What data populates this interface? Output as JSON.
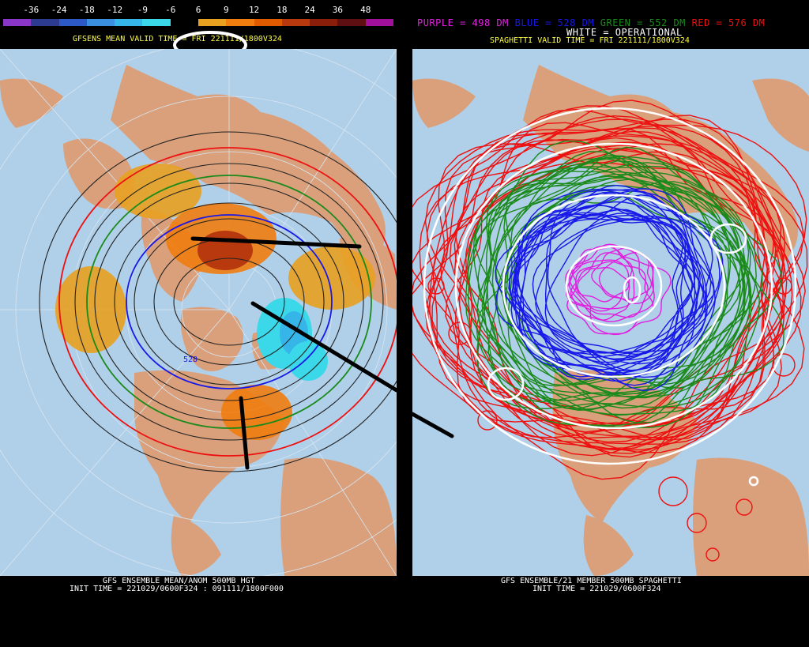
{
  "left": {
    "scale_labels": [
      "-36",
      "-24",
      "-18",
      "-12",
      "-9",
      "-6",
      "6",
      "9",
      "12",
      "18",
      "24",
      "36",
      "48"
    ],
    "scale_colors": [
      "#8a37c9",
      "#2c3b8f",
      "#2d59c7",
      "#3b8fe0",
      "#36b6e8",
      "#3ad8e8",
      "#000000",
      "#e8a020",
      "#f07c10",
      "#e05a00",
      "#b8390d",
      "#8a1e0a",
      "#5e0f12",
      "#a0109a"
    ],
    "valid_time": "GFSENS MEAN VALID TIME = FRI 221111/1800V324",
    "contour_label": "528",
    "footer_line1": "GFS ENSEMBLE MEAN/ANOM 500MB HGT",
    "footer_line2": "INIT TIME = 221029/0600F324 : 091111/1800F000"
  },
  "right": {
    "legend_purple": "PURPLE = 498 DM",
    "legend_blue": "BLUE = 528 DM",
    "legend_green": "GREEN = 552 DM",
    "legend_red": "RED = 576 DM",
    "legend_white": "WHITE = OPERATIONAL",
    "valid_time": "SPAGHETTI VALID TIME = FRI 221111/1800V324",
    "footer_line1": "GFS ENSEMBLE/21 MEMBER 500MB SPAGHETTI",
    "footer_line2": "INIT TIME = 221029/0600F324"
  },
  "colors": {
    "ocean": "#b0cfe8",
    "land": "#d9a07b",
    "purple": "#e020e0",
    "blue": "#1818e8",
    "green": "#1a8a1a",
    "red": "#ee1010",
    "yellow": "#ffff40"
  }
}
